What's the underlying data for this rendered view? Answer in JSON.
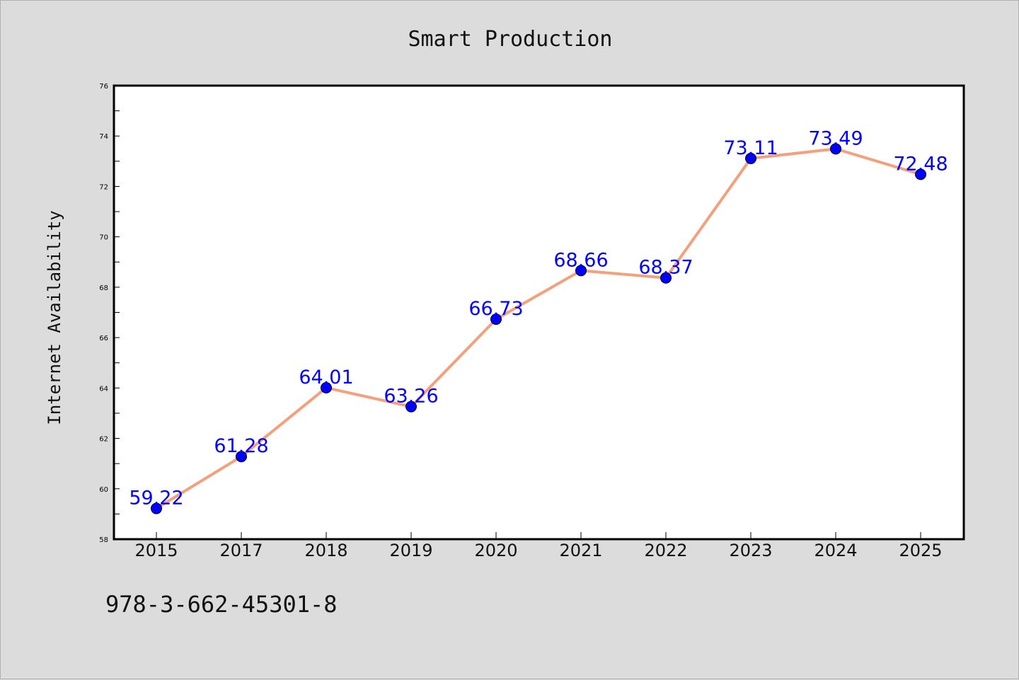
{
  "chart_data": {
    "type": "line",
    "title": "Smart Production",
    "xlabel": "",
    "ylabel": "Internet Availability",
    "categories": [
      "2015",
      "2017",
      "2018",
      "2019",
      "2020",
      "2021",
      "2022",
      "2023",
      "2024",
      "2025"
    ],
    "values": [
      59.22,
      61.28,
      64.01,
      63.26,
      66.73,
      68.66,
      68.37,
      73.11,
      73.49,
      72.48
    ],
    "value_labels": [
      "59.22",
      "61.28",
      "64.01",
      "63.26",
      "66.73",
      "68.66",
      "68.37",
      "73.11",
      "73.49",
      "72.48"
    ],
    "ylim": [
      58,
      76
    ],
    "yticks": [
      "58",
      "60",
      "62",
      "64",
      "66",
      "68",
      "70",
      "72",
      "74",
      "76"
    ],
    "grid": false,
    "legend": "none",
    "line_color": "#f4a07c",
    "marker_color": "#0000ff",
    "label_color": "#0000ff"
  },
  "footnote": "978-3-662-45301-8"
}
